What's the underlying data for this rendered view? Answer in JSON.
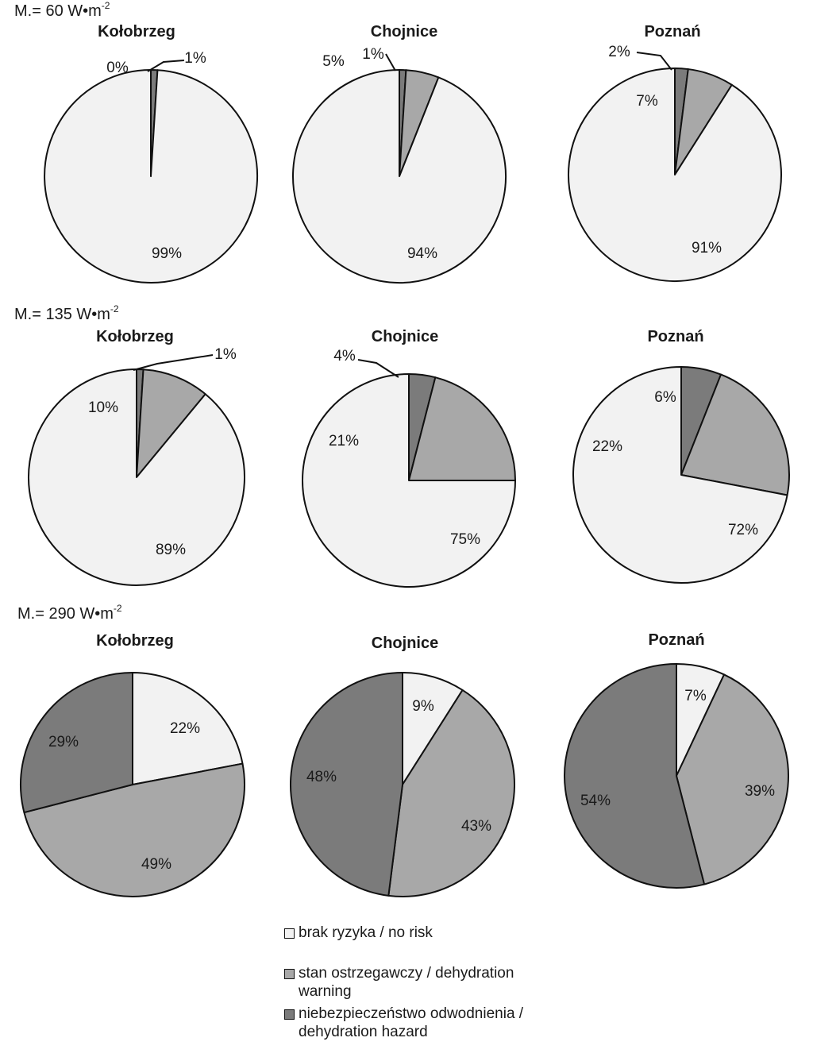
{
  "colors": {
    "no_risk": "#f2f2f2",
    "warning": "#a8a8a8",
    "hazard": "#7b7b7b",
    "stroke": "#111111"
  },
  "legend": [
    {
      "key": "no_risk",
      "label": "brak ryzyka / no risk"
    },
    {
      "key": "warning",
      "label": "stan ostrzegawczy / dehydration warning"
    },
    {
      "key": "hazard",
      "label": "niebezpieczeństwo odwodnienia / dehydration hazard"
    }
  ],
  "chart_data": [
    {
      "type": "pie",
      "group": "M.= 60 W•m-2",
      "title": "Kołobrzeg",
      "labels": [
        "brak ryzyka / no risk",
        "stan ostrzegawczy / dehydration warning",
        "niebezpieczeństwo odwodnienia / dehydration hazard"
      ],
      "values": [
        99,
        0,
        1
      ],
      "value_labels": [
        "99%",
        "0%",
        "1%"
      ]
    },
    {
      "type": "pie",
      "group": "M.= 60 W•m-2",
      "title": "Chojnice",
      "labels": [
        "brak ryzyka / no risk",
        "stan ostrzegawczy / dehydration warning",
        "niebezpieczeństwo odwodnienia / dehydration hazard"
      ],
      "values": [
        94,
        5,
        1
      ],
      "value_labels": [
        "94%",
        "5%",
        "1%"
      ]
    },
    {
      "type": "pie",
      "group": "M.= 60 W•m-2",
      "title": "Poznań",
      "labels": [
        "brak ryzyka / no risk",
        "stan ostrzegawczy / dehydration warning",
        "niebezpieczeństwo odwodnienia / dehydration hazard"
      ],
      "values": [
        91,
        7,
        2
      ],
      "value_labels": [
        "91%",
        "7%",
        "2%"
      ]
    },
    {
      "type": "pie",
      "group": "M.= 135 W•m-2",
      "title": "Kołobrzeg",
      "labels": [
        "brak ryzyka / no risk",
        "stan ostrzegawczy / dehydration warning",
        "niebezpieczeństwo odwodnienia / dehydration hazard"
      ],
      "values": [
        89,
        10,
        1
      ],
      "value_labels": [
        "89%",
        "10%",
        "1%"
      ]
    },
    {
      "type": "pie",
      "group": "M.= 135 W•m-2",
      "title": "Chojnice",
      "labels": [
        "brak ryzyka / no risk",
        "stan ostrzegawczy / dehydration warning",
        "niebezpieczeństwo odwodnienia / dehydration hazard"
      ],
      "values": [
        75,
        21,
        4
      ],
      "value_labels": [
        "75%",
        "21%",
        "4%"
      ]
    },
    {
      "type": "pie",
      "group": "M.= 135 W•m-2",
      "title": "Poznań",
      "labels": [
        "brak ryzyka / no risk",
        "stan ostrzegawczy / dehydration warning",
        "niebezpieczeństwo odwodnienia / dehydration hazard"
      ],
      "values": [
        72,
        22,
        6
      ],
      "value_labels": [
        "72%",
        "22%",
        "6%"
      ]
    },
    {
      "type": "pie",
      "group": "M.= 290 W•m-2",
      "title": "Kołobrzeg",
      "labels": [
        "brak ryzyka / no risk",
        "stan ostrzegawczy / dehydration warning",
        "niebezpieczeństwo odwodnienia / dehydration hazard"
      ],
      "values": [
        22,
        49,
        29
      ],
      "value_labels": [
        "22%",
        "49%",
        "29%"
      ]
    },
    {
      "type": "pie",
      "group": "M.= 290 W•m-2",
      "title": "Chojnice",
      "labels": [
        "brak ryzyka / no risk",
        "stan ostrzegawczy / dehydration warning",
        "niebezpieczeństwo odwodnienia / dehydration hazard"
      ],
      "values": [
        9,
        43,
        48
      ],
      "value_labels": [
        "9%",
        "43%",
        "48%"
      ]
    },
    {
      "type": "pie",
      "group": "M.= 290 W•m-2",
      "title": "Poznań",
      "labels": [
        "brak ryzyka / no risk",
        "stan ostrzegawczy / dehydration warning",
        "niebezpieczeństwo odwodnienia / dehydration hazard"
      ],
      "values": [
        7,
        39,
        54
      ],
      "value_labels": [
        "7%",
        "39%",
        "54%"
      ]
    }
  ]
}
